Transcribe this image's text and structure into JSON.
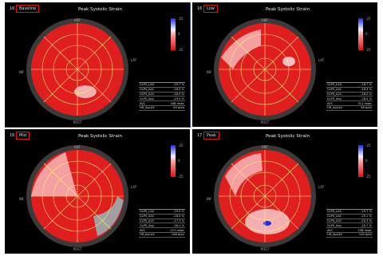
{
  "title": "Peak Systolic Strain",
  "colorbar": {
    "top": "-25",
    "mid": "0",
    "bottom": "-25"
  },
  "wall_labels": {
    "ant": "ANT",
    "lat": "LAT",
    "post": "POST",
    "inf": "INF",
    "sept": "SEPT"
  },
  "table_labels": [
    "GLPS_LAX",
    "GLPS_A4C",
    "GLPS_A2C",
    "GLPS_Avg",
    "AVC",
    "HR_ApLAX"
  ],
  "panels": [
    {
      "num": "16",
      "tag": "Baseline",
      "values": [
        "-19.7 %",
        "-18.5 %",
        "-18.9 %",
        "-19.0 %",
        "348 msec",
        "63 bpm"
      ]
    },
    {
      "num": "16",
      "tag": "Low",
      "values": [
        "-18.7 %",
        "-18.3 %",
        "-18.2 %",
        "-18.4 %",
        "311 msec",
        "58 bpm"
      ]
    },
    {
      "num": "16",
      "tag": "Mid",
      "values": [
        "-19.0 %",
        "-18.0 %",
        "-17.3 %",
        "-18.1 %",
        "271 msec",
        "108 bpm"
      ]
    },
    {
      "num": "17",
      "tag": "Peak",
      "values": [
        "-19.7 %",
        "-19.1 %",
        "-20.3 %",
        "-19.7 %",
        "238 msec",
        "145 bpm"
      ]
    }
  ],
  "colors": {
    "strain_red": "#e01e1e",
    "light_patch": "#f4a0a0",
    "blue_center": "#1830e0"
  }
}
